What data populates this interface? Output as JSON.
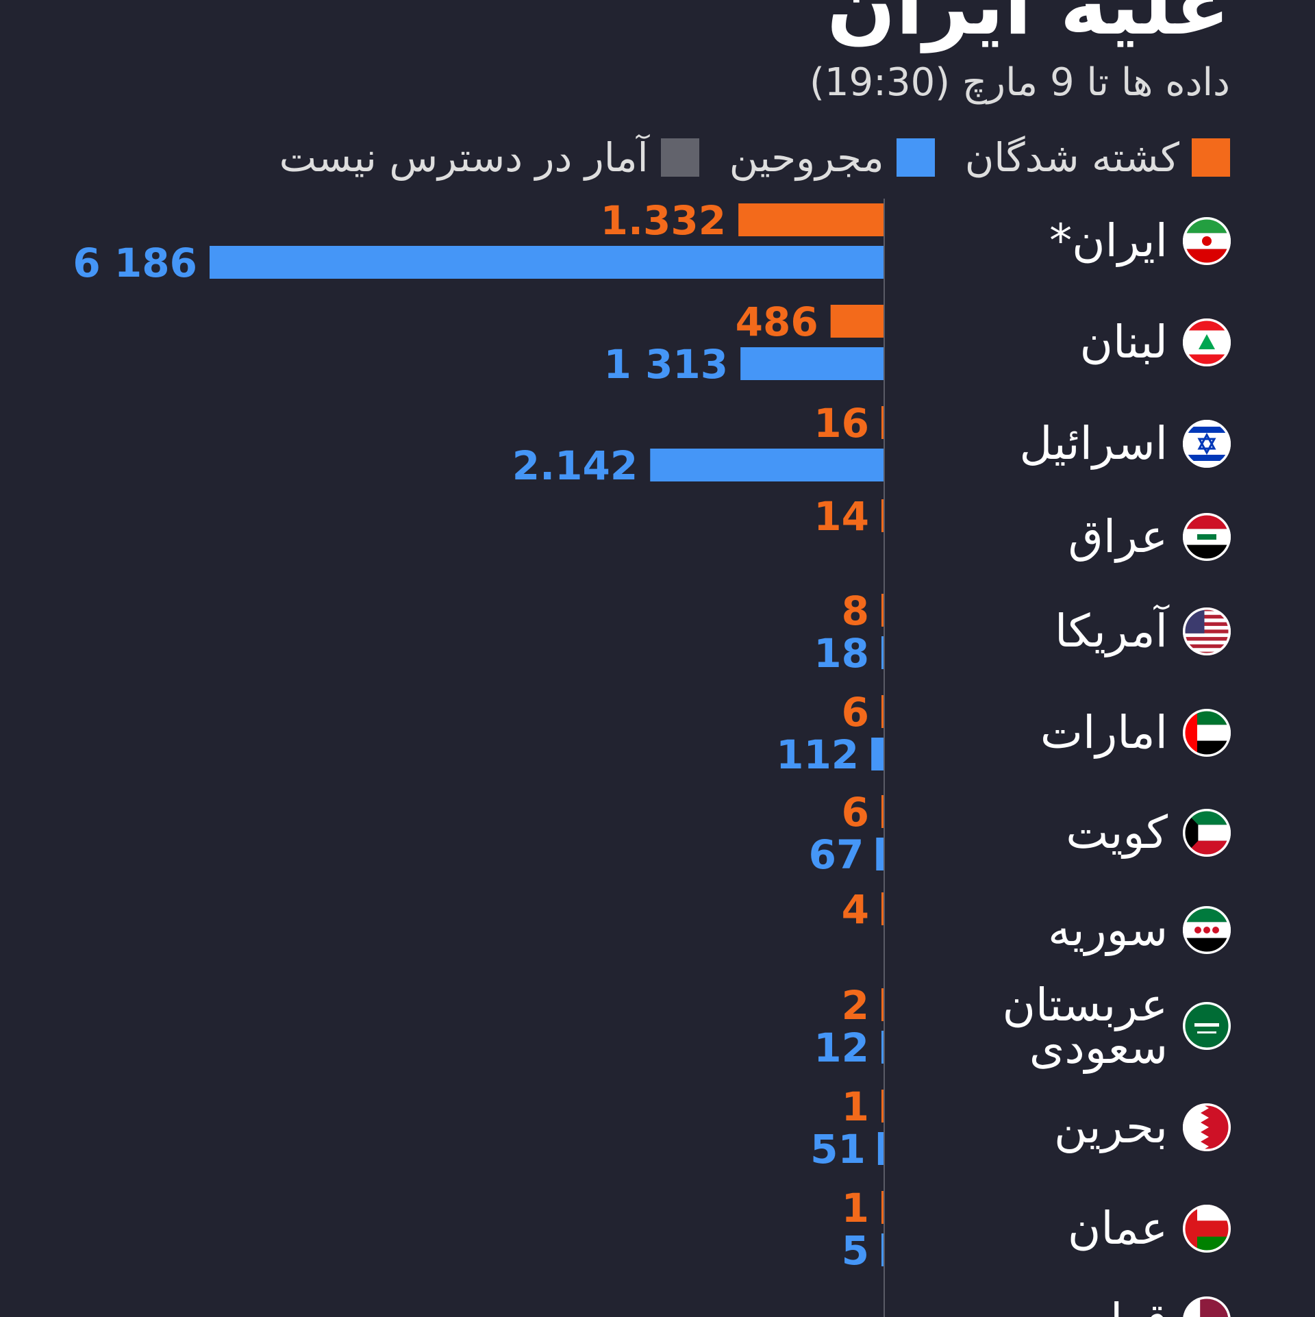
{
  "title": "علیه ایران",
  "subtitle": "داده ها تا 9 مارچ (19:30)",
  "legend": {
    "killed_label": "کشته شدگان",
    "wounded_label": "مجروحین",
    "na_label": "آمار در دسترس نیست"
  },
  "colors": {
    "killed": "#f36a1b",
    "wounded": "#4596f7",
    "na": "#62636c",
    "axis": "#5a5b66",
    "background": "#222330"
  },
  "chart_data": {
    "type": "bar",
    "orientation": "horizontal",
    "categories": [
      "ایران*",
      "لبنان",
      "اسرائیل",
      "عراق",
      "آمریکا",
      "امارات",
      "کویت",
      "سوریه",
      "عربستان سعودی",
      "بحرین",
      "عمان",
      "قطر"
    ],
    "series": [
      {
        "name": "کشته شدگان",
        "values": [
          1332,
          486,
          16,
          14,
          8,
          6,
          6,
          4,
          2,
          1,
          1,
          null
        ],
        "labels": [
          "1.332",
          "486",
          "16",
          "14",
          "8",
          "6",
          "6",
          "4",
          "2",
          "1",
          "1",
          null
        ]
      },
      {
        "name": "مجروحین",
        "values": [
          6186,
          1313,
          2142,
          null,
          18,
          112,
          67,
          null,
          12,
          51,
          5,
          null
        ],
        "labels": [
          "6 186",
          "1 313",
          "2.142",
          null,
          "18",
          "112",
          "67",
          null,
          "12",
          "51",
          "5",
          null
        ]
      }
    ],
    "flags": [
      "iran-flag-icon",
      "lebanon-flag-icon",
      "israel-flag-icon",
      "iraq-flag-icon",
      "usa-flag-icon",
      "uae-flag-icon",
      "kuwait-flag-icon",
      "syria-flag-icon",
      "saudi-flag-icon",
      "bahrain-flag-icon",
      "oman-flag-icon",
      "qatar-flag-icon"
    ],
    "grid": false,
    "legend_position": "top-right"
  }
}
